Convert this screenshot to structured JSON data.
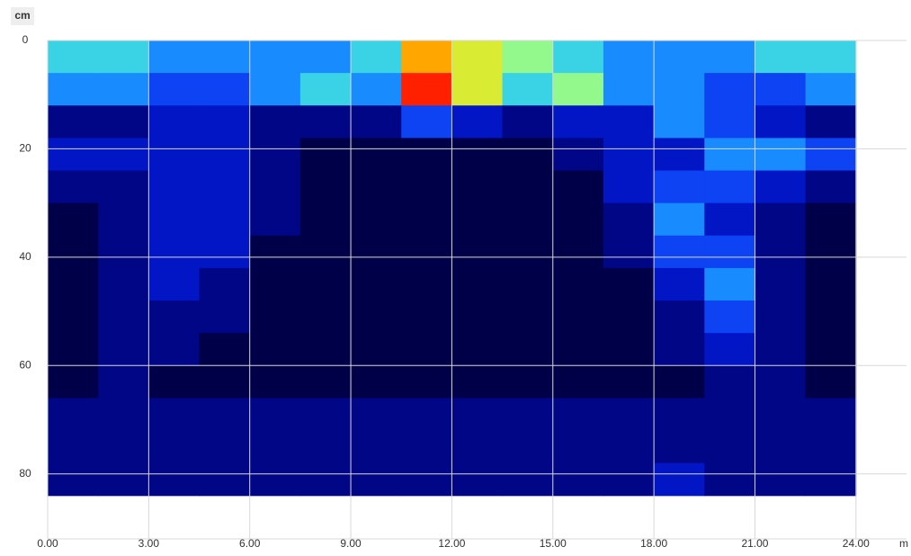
{
  "chart_data": {
    "type": "heatmap",
    "x_label": "m",
    "y_label": "cm",
    "x_bins": [
      0,
      1.5,
      3,
      4.5,
      6,
      7.5,
      9,
      10.5,
      12,
      13.5,
      15,
      16.5,
      18,
      19.5,
      21,
      22.5,
      24
    ],
    "y_bins": [
      0,
      6,
      12,
      18,
      24,
      30,
      36,
      42,
      48,
      54,
      60,
      66,
      72,
      78,
      84
    ],
    "values": [
      [
        6,
        6,
        5,
        5,
        5,
        5,
        6,
        9,
        8,
        7,
        6,
        5,
        5,
        5,
        6,
        6
      ],
      [
        5,
        5,
        4,
        4,
        5,
        6,
        5,
        10,
        8,
        6,
        7,
        5,
        5,
        4,
        4,
        5
      ],
      [
        2,
        2,
        3,
        3,
        2,
        2,
        2,
        4,
        3,
        2,
        3,
        3,
        5,
        4,
        3,
        2
      ],
      [
        3,
        3,
        3,
        3,
        2,
        1,
        1,
        1,
        1,
        1,
        2,
        3,
        3,
        5,
        5,
        4
      ],
      [
        2,
        2,
        3,
        3,
        2,
        1,
        1,
        1,
        1,
        1,
        1,
        3,
        4,
        4,
        3,
        2
      ],
      [
        1,
        2,
        3,
        3,
        2,
        1,
        1,
        1,
        1,
        1,
        1,
        2,
        5,
        3,
        2,
        1
      ],
      [
        1,
        2,
        3,
        3,
        1,
        1,
        1,
        1,
        1,
        1,
        1,
        2,
        4,
        4,
        2,
        1
      ],
      [
        1,
        2,
        3,
        2,
        1,
        1,
        1,
        1,
        1,
        1,
        1,
        1,
        3,
        5,
        2,
        1
      ],
      [
        1,
        2,
        2,
        2,
        1,
        1,
        1,
        1,
        1,
        1,
        1,
        1,
        2,
        4,
        2,
        1
      ],
      [
        1,
        2,
        2,
        1,
        1,
        1,
        1,
        1,
        1,
        1,
        1,
        1,
        2,
        3,
        2,
        1
      ],
      [
        1,
        2,
        1,
        1,
        1,
        1,
        1,
        1,
        1,
        1,
        1,
        1,
        1,
        2,
        2,
        1
      ],
      [
        2,
        2,
        2,
        2,
        2,
        2,
        2,
        2,
        2,
        2,
        2,
        2,
        2,
        2,
        2,
        2
      ],
      [
        2,
        2,
        2,
        2,
        2,
        2,
        2,
        2,
        2,
        2,
        2,
        2,
        2,
        2,
        2,
        2
      ],
      [
        2,
        2,
        2,
        2,
        2,
        2,
        2,
        2,
        2,
        2,
        2,
        2,
        3,
        2,
        2,
        2
      ]
    ],
    "zlim": [
      0,
      10
    ],
    "colorscale": [
      "#000010",
      "#000060",
      "#0010c0",
      "#1050ff",
      "#20c8ff",
      "#a0ff80",
      "#ffe000",
      "#ff2000"
    ],
    "xlim": [
      0,
      25.5
    ],
    "ylim": [
      0,
      92
    ],
    "y_inverted": true,
    "xticks": [
      {
        "value": 0,
        "label": "0.00"
      },
      {
        "value": 3,
        "label": "3.00"
      },
      {
        "value": 6,
        "label": "6.00"
      },
      {
        "value": 9,
        "label": "9.00"
      },
      {
        "value": 12,
        "label": "12.00"
      },
      {
        "value": 15,
        "label": "15.00"
      },
      {
        "value": 18,
        "label": "18.00"
      },
      {
        "value": 21,
        "label": "21.00"
      },
      {
        "value": 24,
        "label": "24.00"
      }
    ],
    "yticks": [
      0,
      20,
      40,
      60,
      80
    ],
    "grid": true
  }
}
